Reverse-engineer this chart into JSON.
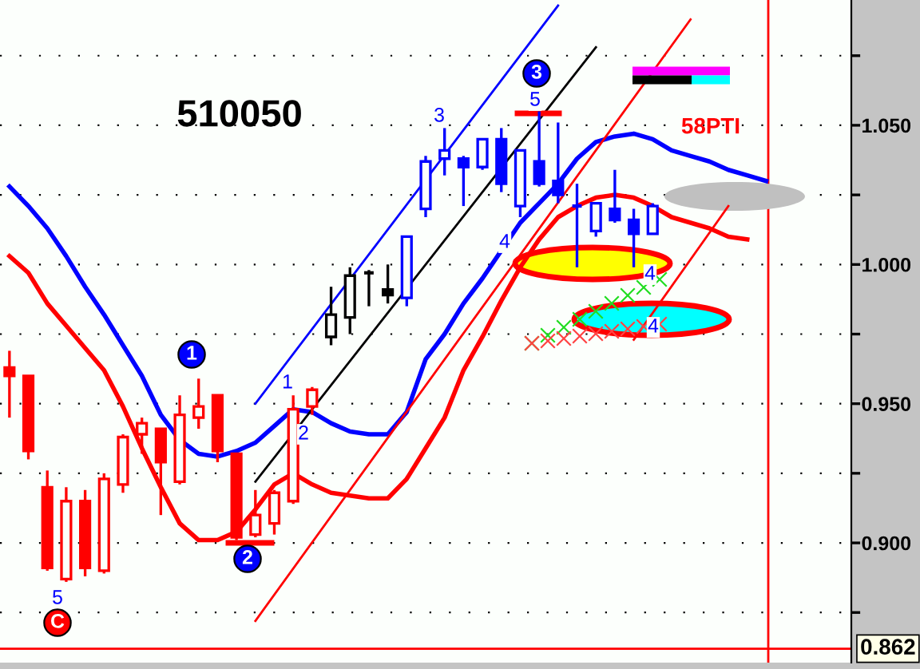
{
  "chart_data": {
    "type": "candlestick",
    "title": "510050",
    "categories": [
      null,
      null,
      null,
      null,
      null,
      null,
      null,
      null,
      null,
      null,
      null,
      null,
      null,
      null,
      null,
      null,
      null,
      null,
      null,
      null,
      null,
      null,
      null,
      null,
      null,
      null,
      null,
      null,
      null,
      null,
      null,
      null,
      null,
      null,
      null,
      null,
      null,
      null,
      null,
      null,
      null,
      null,
      null,
      null,
      null
    ],
    "ohlc": [
      [
        0.963,
        0.969,
        0.945,
        0.96
      ],
      [
        0.96,
        0.96,
        0.93,
        0.933
      ],
      [
        0.92,
        0.926,
        0.89,
        0.891
      ],
      [
        0.887,
        0.92,
        0.886,
        0.915
      ],
      [
        0.915,
        0.919,
        0.888,
        0.891
      ],
      [
        0.89,
        0.925,
        0.889,
        0.923
      ],
      [
        0.921,
        0.939,
        0.918,
        0.938
      ],
      [
        0.939,
        0.945,
        0.932,
        0.943
      ],
      [
        0.941,
        0.941,
        0.91,
        0.929
      ],
      [
        0.922,
        0.953,
        0.921,
        0.946
      ],
      [
        0.945,
        0.959,
        0.941,
        0.949
      ],
      [
        0.953,
        0.953,
        0.929,
        0.933
      ],
      [
        0.932,
        0.932,
        0.901,
        0.902
      ],
      [
        0.903,
        0.919,
        0.902,
        0.91
      ],
      [
        0.907,
        0.919,
        0.903,
        0.918
      ],
      [
        0.915,
        0.953,
        0.914,
        0.948
      ],
      [
        0.949,
        0.956,
        0.946,
        0.955
      ],
      [
        0.974,
        0.992,
        0.971,
        0.982
      ],
      [
        0.981,
        0.999,
        0.975,
        0.996
      ],
      [
        0.997,
        0.998,
        0.985,
        0.997
      ],
      [
        0.991,
        1.0,
        0.986,
        0.989
      ],
      [
        0.988,
        1.01,
        0.985,
        1.01
      ],
      [
        1.02,
        1.039,
        1.017,
        1.037
      ],
      [
        1.038,
        1.049,
        1.032,
        1.041
      ],
      [
        1.038,
        1.039,
        1.021,
        1.035
      ],
      [
        1.035,
        1.045,
        1.034,
        1.045
      ],
      [
        1.045,
        1.049,
        1.026,
        1.029
      ],
      [
        1.021,
        1.041,
        1.017,
        1.041
      ],
      [
        1.037,
        1.055,
        1.028,
        1.029
      ],
      [
        1.03,
        1.051,
        1.022,
        1.025
      ],
      [
        1.021,
        1.029,
        0.999,
        1.021
      ],
      [
        1.012,
        1.022,
        1.01,
        1.022
      ],
      [
        1.02,
        1.034,
        1.015,
        1.016
      ],
      [
        1.016,
        1.02,
        0.999,
        1.011
      ],
      [
        1.011,
        1.022,
        1.011,
        1.021
      ],
      null,
      null,
      null,
      null,
      null,
      null,
      null,
      null,
      null,
      null
    ],
    "colors": [
      "#ff0000",
      "#ff0000",
      "#ff0000",
      "#ff0000",
      "#ff0000",
      "#ff0000",
      "#ff0000",
      "#ff0000",
      "#ff0000",
      "#ff0000",
      "#ff0000",
      "#ff0000",
      "#ff0000",
      "#ff0000",
      "#ff0000",
      "#ff0000",
      "#ff0000",
      "#000000",
      "#000000",
      "#000000",
      "#000000",
      "#0000ff",
      "#0000ff",
      "#0000ff",
      "#0000ff",
      "#0000ff",
      "#0000ff",
      "#0000ff",
      "#0000ff",
      "#0000ff",
      "#0000ff",
      "#0000ff",
      "#0000ff",
      "#0000ff",
      "#0000ff",
      "#0000ff",
      "#0000ff",
      "#0000ff",
      "#0000ff",
      "#0000ff",
      "#0000ff",
      "#0000ff",
      "#0000ff",
      "#0000ff",
      "#0000ff"
    ],
    "series": [
      {
        "type": "line",
        "color": "#0000ff",
        "values": [
          1.028,
          1.021,
          1.013,
          1.003,
          0.992,
          0.982,
          0.971,
          0.96,
          0.946,
          0.937,
          0.932,
          0.931,
          0.933,
          0.936,
          0.942,
          0.948,
          0.947,
          0.943,
          0.94,
          0.939,
          0.939,
          0.947,
          0.966,
          0.975,
          0.986,
          0.995,
          1.005,
          1.015,
          1.022,
          1.029,
          1.038,
          1.044,
          1.046,
          1.047,
          1.045,
          1.041,
          1.039,
          1.037,
          1.034,
          1.032,
          1.03,
          null,
          null,
          null,
          null
        ]
      },
      {
        "type": "line",
        "color": "#ff0000",
        "values": [
          1.003,
          0.997,
          0.986,
          0.978,
          0.97,
          0.962,
          0.949,
          0.934,
          0.92,
          0.907,
          0.901,
          0.901,
          0.904,
          0.912,
          0.921,
          0.925,
          0.921,
          0.918,
          0.917,
          0.916,
          0.916,
          0.923,
          0.934,
          0.945,
          0.962,
          0.974,
          0.987,
          0.999,
          1.009,
          1.017,
          1.021,
          1.024,
          1.025,
          1.024,
          1.021,
          1.017,
          1.015,
          1.013,
          1.01,
          1.009,
          null,
          null,
          null,
          null,
          null
        ]
      },
      {
        "type": "line",
        "color": "#0000ff",
        "values": [
          null,
          null,
          null,
          null,
          null,
          null,
          null,
          null,
          null,
          null,
          null,
          null,
          null,
          0.95,
          null,
          null,
          null,
          null,
          null,
          null,
          null,
          null,
          null,
          null,
          null,
          null,
          null,
          null,
          null,
          1.093,
          null,
          null,
          null,
          null,
          null,
          null,
          null,
          null,
          null,
          null,
          null,
          null,
          null,
          null,
          null
        ]
      },
      {
        "type": "line",
        "color": "#000000",
        "values": [
          null,
          null,
          null,
          null,
          null,
          null,
          null,
          null,
          null,
          null,
          null,
          null,
          null,
          0.922,
          null,
          null,
          null,
          null,
          null,
          null,
          null,
          null,
          null,
          null,
          null,
          null,
          null,
          null,
          null,
          null,
          null,
          1.078,
          null,
          null,
          null,
          null,
          null,
          null,
          null,
          null,
          null,
          null,
          null,
          null,
          null
        ]
      },
      {
        "type": "line",
        "color": "#ff0000",
        "values": [
          null,
          null,
          null,
          null,
          null,
          null,
          null,
          null,
          null,
          null,
          null,
          null,
          null,
          0.872,
          null,
          null,
          null,
          null,
          null,
          null,
          null,
          null,
          null,
          null,
          null,
          null,
          null,
          null,
          null,
          null,
          null,
          null,
          null,
          null,
          null,
          null,
          1.088,
          null,
          null,
          null,
          null,
          null,
          null,
          null,
          null
        ]
      },
      {
        "type": "line",
        "color": "#ff0000",
        "values": [
          null,
          null,
          null,
          null,
          null,
          null,
          null,
          null,
          null,
          null,
          null,
          null,
          null,
          null,
          null,
          null,
          null,
          null,
          null,
          null,
          null,
          null,
          null,
          null,
          null,
          null,
          null,
          null,
          null,
          null,
          null,
          null,
          null,
          0.973,
          null,
          null,
          null,
          null,
          1.021,
          null,
          null,
          null,
          null,
          null,
          null
        ]
      }
    ],
    "ylim": [
      0.857,
      1.095
    ],
    "yticks": [
      {
        "value": 0.875,
        "label": null
      },
      {
        "value": 0.9,
        "label": "0.900"
      },
      {
        "value": 0.925,
        "label": null
      },
      {
        "value": 0.95,
        "label": "0.950"
      },
      {
        "value": 0.975,
        "label": null
      },
      {
        "value": 1.0,
        "label": "1.000"
      },
      {
        "value": 1.025,
        "label": null
      },
      {
        "value": 1.05,
        "label": "1.050"
      },
      {
        "value": 1.075,
        "label": null
      }
    ],
    "grid": "y",
    "ref_lines": [
      {
        "axis": "y",
        "value": 0.862,
        "label": "0.862",
        "color": "#ff0000"
      }
    ],
    "annotations": [
      "5",
      "C",
      "1",
      "2",
      "1",
      "2",
      "3",
      "3",
      "5",
      "4",
      "4",
      "4",
      "58PTI"
    ]
  }
}
